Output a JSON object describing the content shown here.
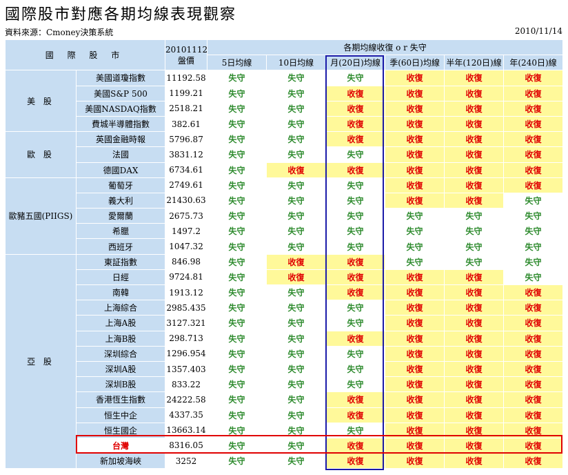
{
  "title": "國際股市對應各期均線表現觀察",
  "source": "資料來源：Cmoney決策系統",
  "date": "2010/11/14",
  "header": {
    "market": "國 際 股 市",
    "close_line1": "20101112收",
    "close_line2": "盤價",
    "group": "各期均線收復 o r 失守",
    "ma": [
      "5日均線",
      "10日均線",
      "月(20日)均線",
      "季(60日)均線",
      "半年(120日)線",
      "年(240日)線"
    ]
  },
  "groups": [
    {
      "label": "美 股",
      "rows": [
        {
          "name": "美國道瓊指數",
          "close": "11192.58",
          "status": [
            "失守",
            "失守",
            "失守",
            "收復",
            "收復",
            "收復"
          ]
        },
        {
          "name": "美國S&P 500",
          "close": "1199.21",
          "status": [
            "失守",
            "失守",
            "收復",
            "收復",
            "收復",
            "收復"
          ]
        },
        {
          "name": "美國NASDAQ指數",
          "close": "2518.21",
          "status": [
            "失守",
            "失守",
            "收復",
            "收復",
            "收復",
            "收復"
          ]
        },
        {
          "name": "費城半導體指數",
          "close": "382.61",
          "status": [
            "失守",
            "失守",
            "收復",
            "收復",
            "收復",
            "收復"
          ]
        }
      ]
    },
    {
      "label": "歐 股",
      "rows": [
        {
          "name": "英國金融時報",
          "close": "5796.87",
          "status": [
            "失守",
            "失守",
            "收復",
            "收復",
            "收復",
            "收復"
          ]
        },
        {
          "name": "法國",
          "close": "3831.12",
          "status": [
            "失守",
            "失守",
            "失守",
            "收復",
            "收復",
            "收復"
          ]
        },
        {
          "name": "德國DAX",
          "close": "6734.61",
          "status": [
            "失守",
            "收復",
            "收復",
            "收復",
            "收復",
            "收復"
          ]
        }
      ]
    },
    {
      "label": "歐豬五國(PIIGS)",
      "rows": [
        {
          "name": "葡萄牙",
          "close": "2749.61",
          "status": [
            "失守",
            "失守",
            "失守",
            "收復",
            "收復",
            "收復"
          ]
        },
        {
          "name": "義大利",
          "close": "21430.63",
          "status": [
            "失守",
            "失守",
            "失守",
            "收復",
            "收復",
            "失守"
          ]
        },
        {
          "name": "愛爾蘭",
          "close": "2675.73",
          "status": [
            "失守",
            "失守",
            "失守",
            "失守",
            "失守",
            "失守"
          ]
        },
        {
          "name": "希臘",
          "close": "1497.2",
          "status": [
            "失守",
            "失守",
            "失守",
            "失守",
            "失守",
            "失守"
          ]
        },
        {
          "name": "西班牙",
          "close": "1047.32",
          "status": [
            "失守",
            "失守",
            "失守",
            "失守",
            "失守",
            "失守"
          ]
        }
      ]
    },
    {
      "label": "亞 股",
      "rows": [
        {
          "name": "東証指數",
          "close": "846.98",
          "status": [
            "失守",
            "收復",
            "收復",
            "失守",
            "失守",
            "失守"
          ]
        },
        {
          "name": "日經",
          "close": "9724.81",
          "status": [
            "失守",
            "收復",
            "收復",
            "收復",
            "收復",
            "失守"
          ]
        },
        {
          "name": "南韓",
          "close": "1913.12",
          "status": [
            "失守",
            "失守",
            "收復",
            "收復",
            "收復",
            "收復"
          ]
        },
        {
          "name": "上海綜合",
          "close": "2985.435",
          "status": [
            "失守",
            "失守",
            "失守",
            "收復",
            "收復",
            "收復"
          ]
        },
        {
          "name": "上海A股",
          "close": "3127.321",
          "status": [
            "失守",
            "失守",
            "失守",
            "收復",
            "收復",
            "收復"
          ]
        },
        {
          "name": "上海B股",
          "close": "298.713",
          "status": [
            "失守",
            "失守",
            "收復",
            "收復",
            "收復",
            "收復"
          ]
        },
        {
          "name": "深圳綜合",
          "close": "1296.954",
          "status": [
            "失守",
            "失守",
            "失守",
            "收復",
            "收復",
            "收復"
          ]
        },
        {
          "name": "深圳A股",
          "close": "1357.403",
          "status": [
            "失守",
            "失守",
            "失守",
            "收復",
            "收復",
            "收復"
          ]
        },
        {
          "name": "深圳B股",
          "close": "833.22",
          "status": [
            "失守",
            "失守",
            "失守",
            "收復",
            "收復",
            "收復"
          ]
        },
        {
          "name": "香港恆生指數",
          "close": "24222.58",
          "status": [
            "失守",
            "失守",
            "收復",
            "收復",
            "收復",
            "收復"
          ]
        },
        {
          "name": "恒生中企",
          "close": "4337.35",
          "status": [
            "失守",
            "失守",
            "收復",
            "收復",
            "收復",
            "收復"
          ]
        },
        {
          "name": "恒生國企",
          "close": "13663.14",
          "status": [
            "失守",
            "失守",
            "失守",
            "收復",
            "收復",
            "收復"
          ]
        },
        {
          "name": "台灣",
          "close": "8316.05",
          "status": [
            "失守",
            "失守",
            "收復",
            "收復",
            "收復",
            "收復"
          ],
          "highlight": true
        },
        {
          "name": "新加坡海峽",
          "close": "3252",
          "status": [
            "失守",
            "失守",
            "收復",
            "收復",
            "收復",
            "收復"
          ]
        }
      ]
    }
  ],
  "colors": {
    "gain_text": "#e00000",
    "gain_bg": "#fff99a",
    "lose_text": "#2e8b2e",
    "header_bg": "#c7ddf2",
    "blue_box": "#1a1aa8",
    "red_box": "#e00000"
  }
}
